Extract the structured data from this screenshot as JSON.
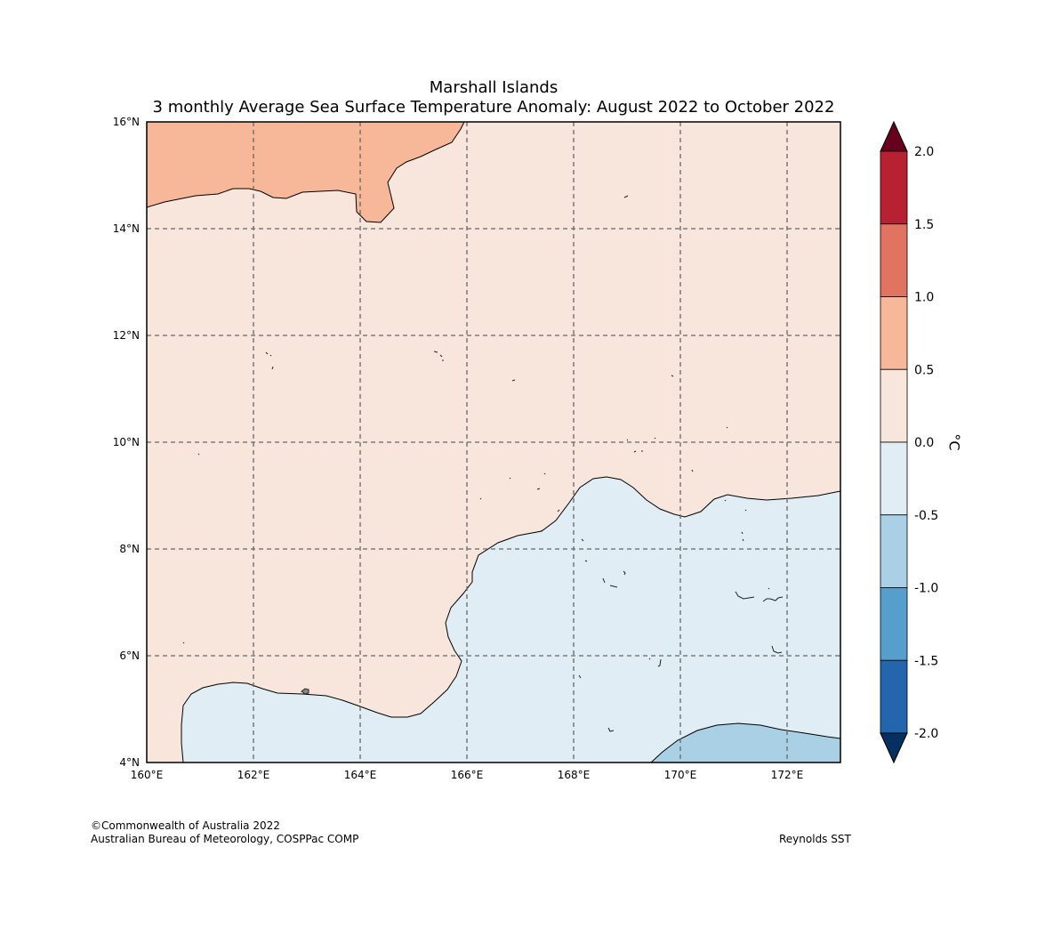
{
  "title": {
    "line1": "Marshall Islands",
    "line2": "3 monthly Average Sea Surface Temperature Anomaly: August 2022 to October 2022"
  },
  "map": {
    "lon_range": [
      160,
      173
    ],
    "lat_range": [
      4,
      16
    ],
    "lon_ticks": [
      "160°E",
      "162°E",
      "164°E",
      "166°E",
      "168°E",
      "170°E",
      "172°E"
    ],
    "lat_ticks": [
      "4°N",
      "6°N",
      "8°N",
      "10°N",
      "12°N",
      "14°N",
      "16°N"
    ],
    "gridlines": true,
    "regions": [
      {
        "name": "0.5 to 1.0",
        "color": "#f7b799"
      },
      {
        "name": "0.0 to 0.5",
        "color": "#f8e6dd"
      },
      {
        "name": "-0.5 to 0.0",
        "color": "#e1edf4"
      },
      {
        "name": "-1.0 to -0.5",
        "color": "#a9d0e5"
      }
    ]
  },
  "colorbar": {
    "unit": "°C",
    "ticks": [
      "2.0",
      "1.5",
      "1.0",
      "0.5",
      "0.0",
      "-0.5",
      "-1.0",
      "-1.5",
      "-2.0"
    ],
    "colors": [
      "#67001f",
      "#b82131",
      "#e07460",
      "#f7b799",
      "#f8e6dd",
      "#e1edf4",
      "#a9d0e5",
      "#569fcd",
      "#2366ae",
      "#053061"
    ]
  },
  "footer": {
    "copyright": "©Commonwealth of Australia 2022",
    "agency": "Australian Bureau of Meteorology, COSPPac COMP",
    "source": "Reynolds SST"
  }
}
